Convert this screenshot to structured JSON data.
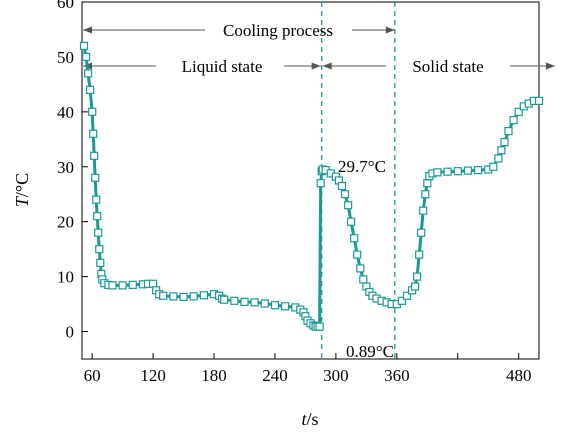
{
  "chart_data": {
    "type": "scatter",
    "title": "",
    "xlabel_var": "t",
    "xlabel_unit": "/s",
    "ylabel_var": "T",
    "ylabel_unit": "/°C",
    "xlim": [
      50,
      500
    ],
    "ylim": [
      -5,
      60
    ],
    "x_ticks": [
      60,
      120,
      180,
      240,
      300,
      360,
      420,
      480
    ],
    "x_tick_labels": [
      "60",
      "120",
      "180",
      "240",
      "300",
      "360",
      "",
      "480"
    ],
    "y_ticks": [
      0,
      10,
      20,
      30,
      40,
      50,
      60
    ],
    "grid": false,
    "legend": "none",
    "series_color": "#1a9a94",
    "marker_fill": "#ffffff",
    "series": [
      {
        "x": [
          52,
          54,
          56,
          58,
          60,
          61,
          62,
          63,
          64,
          65,
          66,
          67,
          68,
          69,
          70,
          72,
          76,
          80,
          90,
          100,
          110,
          115,
          120,
          123,
          126,
          130,
          140,
          150,
          160,
          170,
          180,
          185,
          188,
          190,
          200,
          210,
          220,
          230,
          240,
          250,
          260,
          265,
          268,
          270,
          272,
          275,
          278,
          280,
          282,
          284,
          285,
          286,
          287,
          290,
          295,
          300,
          303,
          306,
          309,
          312,
          315,
          318,
          321,
          324,
          327,
          330,
          333,
          336,
          340,
          345,
          350,
          355,
          360,
          365,
          370,
          375,
          378,
          380,
          382,
          384,
          386,
          388,
          390,
          392,
          395,
          400,
          410,
          420,
          430,
          440,
          450,
          455,
          460,
          463,
          466,
          470,
          475,
          480,
          485,
          490,
          495,
          500
        ],
        "y": [
          52,
          50,
          47,
          44,
          40,
          36,
          32,
          28,
          24,
          21,
          18,
          15,
          12.5,
          10.5,
          9.5,
          8.8,
          8.5,
          8.4,
          8.4,
          8.5,
          8.6,
          8.7,
          8.7,
          7.5,
          6.8,
          6.5,
          6.4,
          6.3,
          6.4,
          6.6,
          6.8,
          6.5,
          6.0,
          5.8,
          5.6,
          5.4,
          5.3,
          5.1,
          4.8,
          4.6,
          4.4,
          4.0,
          3.5,
          2.8,
          2.0,
          1.5,
          1.1,
          0.9,
          0.89,
          0.89,
          27,
          29.2,
          29.5,
          29.4,
          28.8,
          28.2,
          27.5,
          26.5,
          25,
          23,
          20,
          17,
          14,
          11.5,
          9.5,
          8.2,
          7.2,
          6.5,
          6.0,
          5.6,
          5.3,
          5.0,
          5.0,
          5.6,
          6.5,
          7.5,
          8.2,
          10,
          14,
          18,
          22,
          25,
          27,
          28.3,
          28.8,
          29.0,
          29.1,
          29.2,
          29.3,
          29.4,
          29.5,
          30.0,
          31.5,
          33,
          34.5,
          36.5,
          38.5,
          40,
          41,
          41.5,
          42,
          42
        ]
      }
    ],
    "annotations": {
      "cooling_process": "Cooling process",
      "liquid_state": "Liquid state",
      "solid_state": "Solid state",
      "peak_label": "29.7°C",
      "min_label": "0.89°C"
    },
    "vlines_x": [
      286,
      358
    ]
  }
}
